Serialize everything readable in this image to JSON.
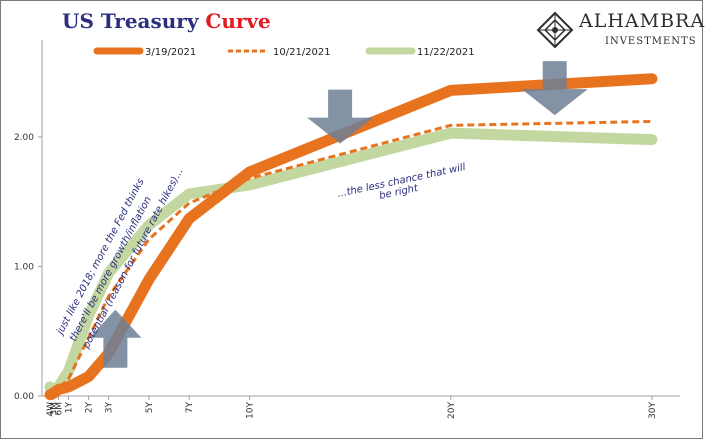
{
  "title": {
    "part1": "US Treasury ",
    "part2": "Curve"
  },
  "logo": {
    "name": "ALHAMBRA",
    "sub": "INVESTMENTS"
  },
  "colors": {
    "series1": "#e8731e",
    "series2": "#e8731e",
    "series3": "#c2d8a0",
    "arrow": "#6f7f96",
    "title_a": "#2b2f7e",
    "title_b": "#e11b22",
    "note": "#2b2f7e"
  },
  "chart_data": {
    "type": "line",
    "categories": [
      "4W",
      "3M",
      "6M",
      "1Y",
      "2Y",
      "3Y",
      "5Y",
      "7Y",
      "10Y",
      "20Y",
      "30Y"
    ],
    "x_months": [
      1,
      3,
      6,
      12,
      24,
      36,
      60,
      84,
      120,
      240,
      360
    ],
    "ylim": [
      0,
      2.5
    ],
    "yticks": [
      0,
      1,
      2
    ],
    "ytick_labels": [
      "0.00",
      "1.00",
      "2.00"
    ],
    "series": [
      {
        "name": "3/19/2021",
        "style": "solid-thick",
        "values": [
          0.01,
          0.02,
          0.05,
          0.07,
          0.15,
          0.33,
          0.9,
          1.37,
          1.73,
          2.36,
          2.45
        ]
      },
      {
        "name": "10/21/2021",
        "style": "dashed",
        "values": [
          0.05,
          0.05,
          0.06,
          0.13,
          0.45,
          0.77,
          1.21,
          1.49,
          1.68,
          2.09,
          2.12
        ]
      },
      {
        "name": "11/22/2021",
        "style": "solid-thick",
        "values": [
          0.07,
          0.05,
          0.07,
          0.19,
          0.62,
          0.95,
          1.32,
          1.56,
          1.63,
          2.03,
          1.98
        ]
      }
    ],
    "annotations": [
      {
        "text_lines": [
          "just like 2018; more the Fed thinks",
          "there'll be more growth/inflation",
          "potential (reason for future rate hikes)..."
        ]
      },
      {
        "text_lines": [
          "...the less chance that will",
          "be right"
        ]
      }
    ],
    "arrows": [
      {
        "direction": "up",
        "at_x_months": 40,
        "at_value": 0.45
      },
      {
        "direction": "down",
        "at_x_months": 174,
        "at_value": 2.15
      },
      {
        "direction": "down",
        "at_x_months": 302,
        "at_value": 2.37
      }
    ]
  }
}
